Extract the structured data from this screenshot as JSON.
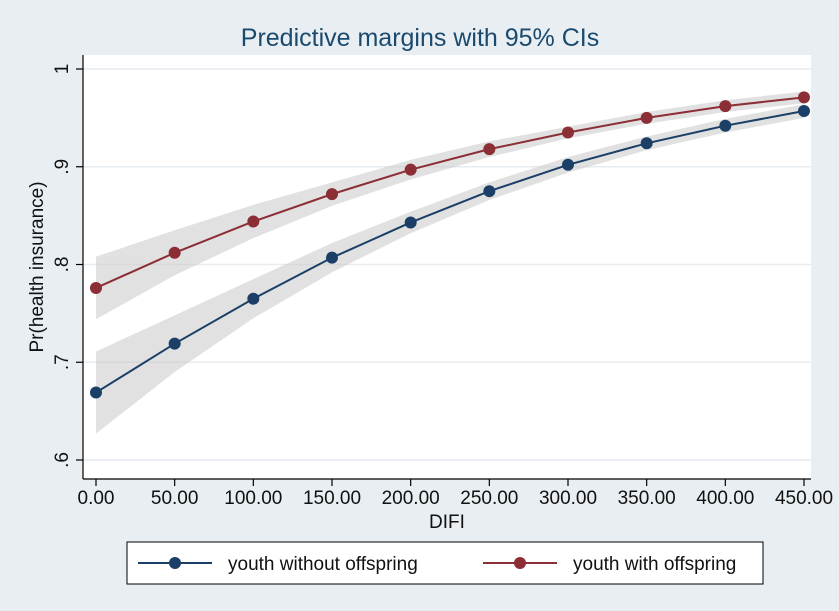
{
  "chart_data": {
    "type": "line",
    "title": "Predictive margins with 95% CIs",
    "xlabel": "DIFI",
    "ylabel": "Pr(health insurance)",
    "x": [
      0,
      50,
      100,
      150,
      200,
      250,
      300,
      350,
      400,
      450
    ],
    "x_tick_labels": [
      "0.00",
      "50.00",
      "100.00",
      "150.00",
      "200.00",
      "250.00",
      "300.00",
      "350.00",
      "400.00",
      "450.00"
    ],
    "xlim": [
      0,
      450
    ],
    "ylim": [
      0.6,
      1.0
    ],
    "y_ticks": [
      0.6,
      0.7,
      0.8,
      0.9,
      1.0
    ],
    "y_tick_labels": [
      ".6",
      ".7",
      ".8",
      ".9",
      "1"
    ],
    "grid": true,
    "legend_position": "bottom",
    "series": [
      {
        "name": "youth without offspring",
        "color": "#1b3f66",
        "values": [
          0.669,
          0.719,
          0.765,
          0.807,
          0.843,
          0.875,
          0.902,
          0.924,
          0.942,
          0.957
        ],
        "ci_lower": [
          0.627,
          0.69,
          0.745,
          0.792,
          0.832,
          0.866,
          0.894,
          0.917,
          0.935,
          0.95
        ],
        "ci_upper": [
          0.711,
          0.748,
          0.785,
          0.822,
          0.854,
          0.884,
          0.91,
          0.931,
          0.949,
          0.964
        ]
      },
      {
        "name": "youth with offspring",
        "color": "#8b2e35",
        "values": [
          0.776,
          0.812,
          0.844,
          0.872,
          0.897,
          0.918,
          0.935,
          0.95,
          0.962,
          0.971
        ],
        "ci_lower": [
          0.744,
          0.789,
          0.827,
          0.86,
          0.887,
          0.91,
          0.929,
          0.944,
          0.956,
          0.965
        ],
        "ci_upper": [
          0.808,
          0.835,
          0.861,
          0.884,
          0.907,
          0.926,
          0.941,
          0.956,
          0.968,
          0.977
        ]
      }
    ]
  }
}
